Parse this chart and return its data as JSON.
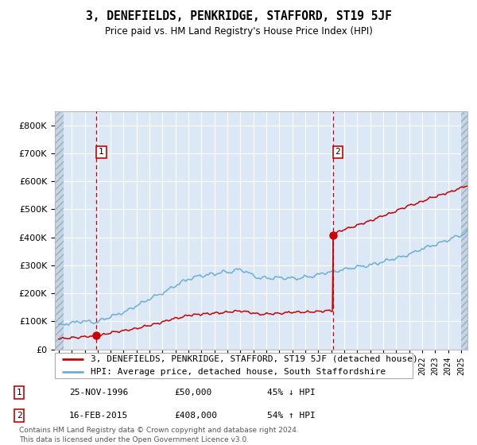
{
  "title": "3, DENEFIELDS, PENKRIDGE, STAFFORD, ST19 5JF",
  "subtitle": "Price paid vs. HM Land Registry's House Price Index (HPI)",
  "hpi_label": "HPI: Average price, detached house, South Staffordshire",
  "property_label": "3, DENEFIELDS, PENKRIDGE, STAFFORD, ST19 5JF (detached house)",
  "transaction1_date": "25-NOV-1996",
  "transaction1_price": 50000,
  "transaction1_hpi_rel": "45% ↓ HPI",
  "transaction1_year": 1996.9,
  "transaction2_date": "16-FEB-2015",
  "transaction2_price": 408000,
  "transaction2_hpi_rel": "54% ↑ HPI",
  "transaction2_year": 2015.12,
  "hpi_color": "#6baed6",
  "property_color": "#cc0000",
  "plot_bg": "#dce8f5",
  "grid_color": "#ffffff",
  "ylim": [
    0,
    850000
  ],
  "xlim_start": 1993.7,
  "xlim_end": 2025.5,
  "footer": "Contains HM Land Registry data © Crown copyright and database right 2024.\nThis data is licensed under the Open Government Licence v3.0.",
  "hatch_left_end": 1994.4,
  "hatch_right_start": 2025.0
}
